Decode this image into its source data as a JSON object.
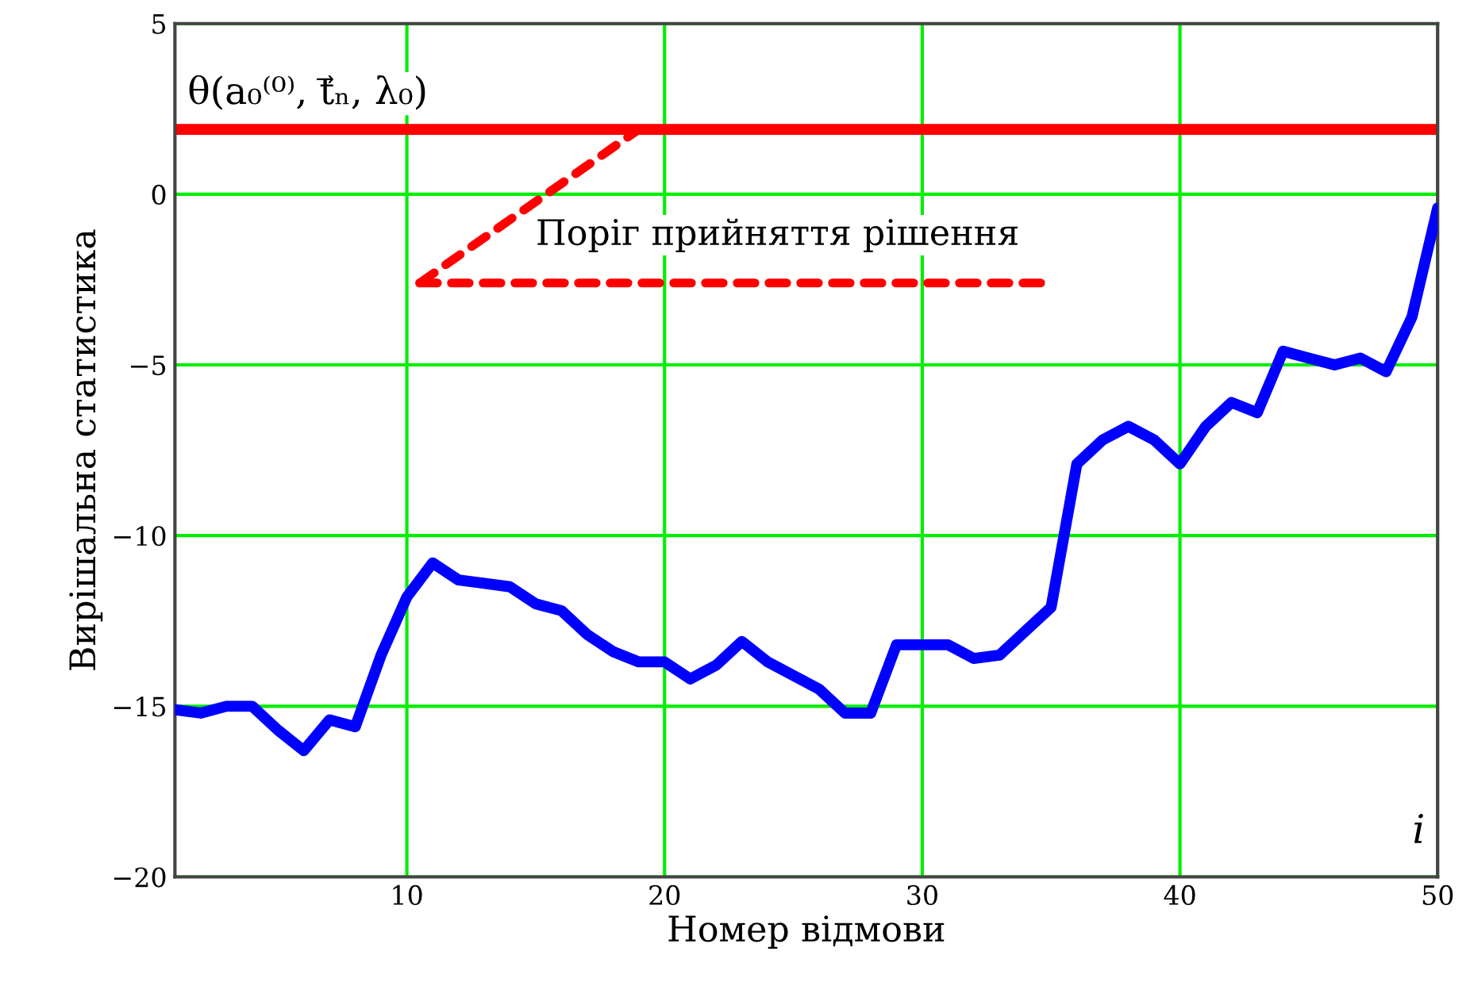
{
  "chart_data": {
    "type": "line",
    "xlabel": "Номер відмови",
    "ylabel": "Вирішальна статистика",
    "x": [
      1,
      2,
      3,
      4,
      5,
      6,
      7,
      8,
      9,
      10,
      11,
      12,
      13,
      14,
      15,
      16,
      17,
      18,
      19,
      20,
      21,
      22,
      23,
      24,
      25,
      26,
      27,
      28,
      29,
      30,
      31,
      32,
      33,
      34,
      35,
      36,
      37,
      38,
      39,
      40,
      41,
      42,
      43,
      44,
      45,
      46,
      47,
      48,
      49,
      50
    ],
    "series": [
      {
        "color": "#0000ff",
        "values": [
          -15.1,
          -15.2,
          -15.0,
          -15.0,
          -15.7,
          -16.3,
          -15.4,
          -15.6,
          -13.5,
          -11.8,
          -10.8,
          -11.3,
          -11.4,
          -11.5,
          -12.0,
          -12.2,
          -12.9,
          -13.4,
          -13.7,
          -13.7,
          -14.2,
          -13.8,
          -13.1,
          -13.7,
          -14.1,
          -14.5,
          -15.2,
          -15.2,
          -13.2,
          -13.2,
          -13.2,
          -13.6,
          -13.5,
          -12.8,
          -12.1,
          -7.9,
          -7.2,
          -6.8,
          -7.2,
          -7.9,
          -6.8,
          -6.1,
          -6.4,
          -4.6,
          -4.8,
          -5.0,
          -4.8,
          -5.2,
          -3.6,
          -0.4
        ]
      }
    ],
    "xlim": [
      1,
      50
    ],
    "xticks": [
      10,
      20,
      30,
      40,
      50
    ],
    "ylim": [
      -20,
      5
    ],
    "yticks": [
      {
        "value": -20,
        "label": "−20"
      },
      {
        "value": -15,
        "label": "−15"
      },
      {
        "value": -10,
        "label": "−10"
      },
      {
        "value": -5,
        "label": "−5"
      },
      0,
      5
    ],
    "grid": true,
    "marker": "none",
    "line_style": "solid",
    "ref_lines": [
      {
        "axis": "y",
        "value": 1.9,
        "label": "θ(a₀⁽⁰⁾, t⃗ₙ, λ₀)",
        "color": "#ff0000",
        "line_style": "solid"
      }
    ],
    "annotations": [
      {
        "text": "Поріг прийняття рішення",
        "x": 19,
        "y": 1.9
      },
      "i"
    ]
  }
}
